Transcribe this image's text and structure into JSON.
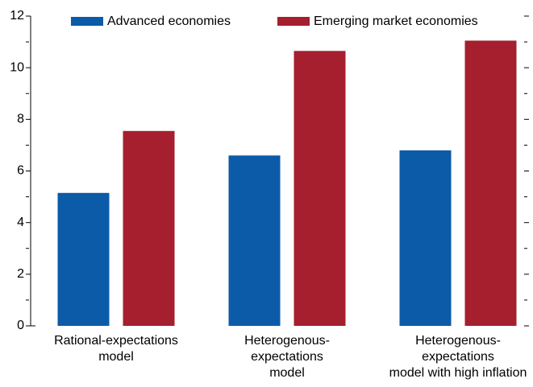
{
  "chart_data": {
    "type": "bar",
    "categories": [
      [
        "Rational-expectations",
        "model"
      ],
      [
        "Heterogenous-",
        "expectations",
        "model"
      ],
      [
        "Heterogenous-",
        "expectations",
        "model with high inflation"
      ]
    ],
    "series": [
      {
        "name": "Advanced economies",
        "color": "#0b5ba8",
        "values": [
          5.15,
          6.6,
          6.8
        ]
      },
      {
        "name": "Emerging market economies",
        "color": "#a51f2f",
        "values": [
          7.55,
          10.65,
          11.05
        ]
      }
    ],
    "ylim": [
      0,
      12
    ],
    "yticks": [
      0,
      2,
      4,
      6,
      8,
      10,
      12
    ],
    "yminor_ticks": [
      1,
      3,
      5,
      7,
      9,
      11
    ],
    "right_ticks": true
  }
}
